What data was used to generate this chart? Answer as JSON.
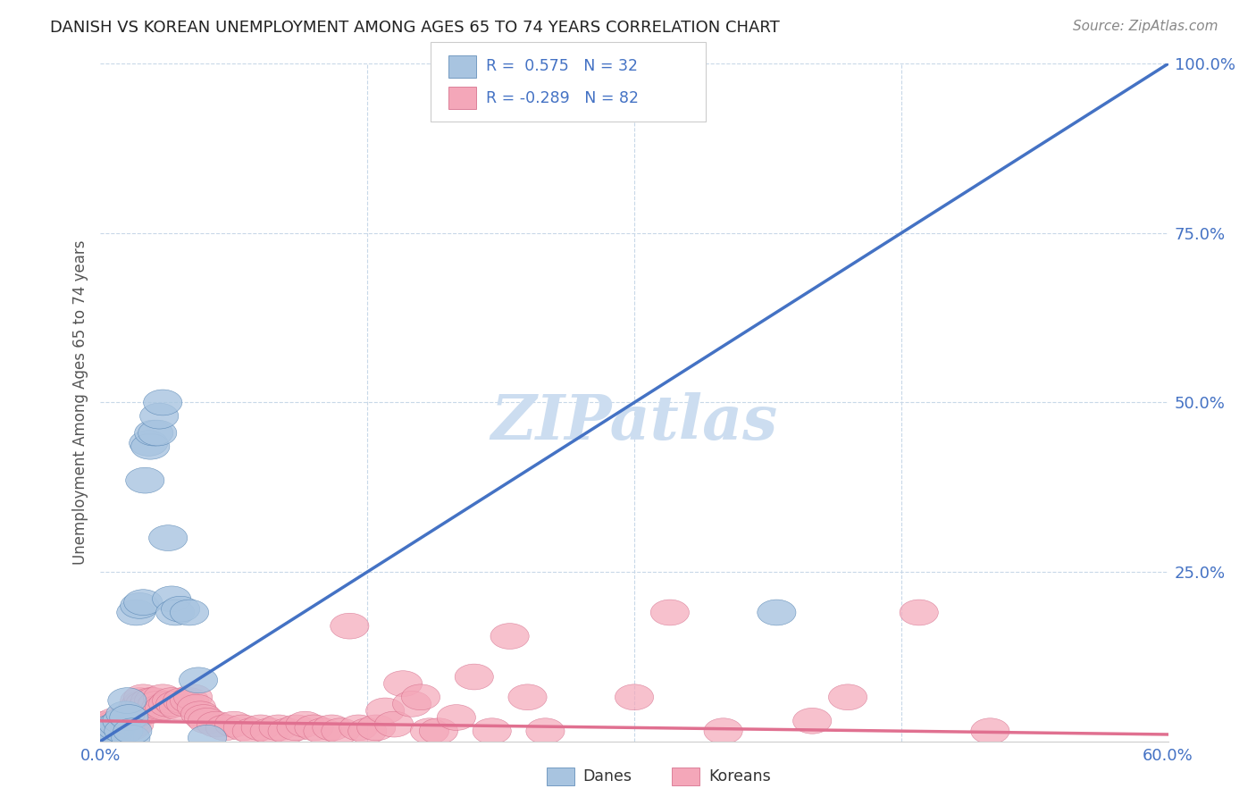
{
  "title": "DANISH VS KOREAN UNEMPLOYMENT AMONG AGES 65 TO 74 YEARS CORRELATION CHART",
  "source": "Source: ZipAtlas.com",
  "ylabel": "Unemployment Among Ages 65 to 74 years",
  "xlim": [
    0.0,
    0.6
  ],
  "ylim": [
    0.0,
    1.0
  ],
  "danes_color": "#a8c4e0",
  "danes_edge_color": "#5080b0",
  "danes_line_color": "#4472c4",
  "koreans_color": "#f4a7b9",
  "koreans_edge_color": "#d06080",
  "koreans_line_color": "#e07090",
  "ref_line_color": "#b8c8d8",
  "background_color": "#ffffff",
  "grid_color": "#c8d8e8",
  "title_color": "#222222",
  "axis_label_color": "#4472c4",
  "watermark_color": "#ccddf0",
  "danes_line": [
    0.0,
    0.0,
    0.6,
    1.0
  ],
  "koreans_line_start_y": 0.03,
  "koreans_line_end_y": 0.01,
  "danes_points": [
    [
      0.003,
      0.01
    ],
    [
      0.005,
      0.015
    ],
    [
      0.006,
      0.02
    ],
    [
      0.007,
      0.01
    ],
    [
      0.008,
      0.005
    ],
    [
      0.009,
      0.02
    ],
    [
      0.01,
      0.025
    ],
    [
      0.012,
      0.03
    ],
    [
      0.013,
      0.015
    ],
    [
      0.014,
      0.04
    ],
    [
      0.015,
      0.06
    ],
    [
      0.016,
      0.035
    ],
    [
      0.017,
      0.005
    ],
    [
      0.018,
      0.015
    ],
    [
      0.02,
      0.19
    ],
    [
      0.022,
      0.2
    ],
    [
      0.024,
      0.205
    ],
    [
      0.025,
      0.385
    ],
    [
      0.027,
      0.44
    ],
    [
      0.028,
      0.435
    ],
    [
      0.03,
      0.455
    ],
    [
      0.032,
      0.455
    ],
    [
      0.033,
      0.48
    ],
    [
      0.035,
      0.5
    ],
    [
      0.038,
      0.3
    ],
    [
      0.04,
      0.21
    ],
    [
      0.042,
      0.19
    ],
    [
      0.045,
      0.195
    ],
    [
      0.05,
      0.19
    ],
    [
      0.055,
      0.09
    ],
    [
      0.06,
      0.005
    ],
    [
      0.38,
      0.19
    ]
  ],
  "koreans_points": [
    [
      0.002,
      0.025
    ],
    [
      0.004,
      0.02
    ],
    [
      0.005,
      0.015
    ],
    [
      0.006,
      0.02
    ],
    [
      0.007,
      0.025
    ],
    [
      0.008,
      0.03
    ],
    [
      0.009,
      0.015
    ],
    [
      0.01,
      0.02
    ],
    [
      0.011,
      0.025
    ],
    [
      0.012,
      0.03
    ],
    [
      0.013,
      0.02
    ],
    [
      0.014,
      0.025
    ],
    [
      0.015,
      0.03
    ],
    [
      0.016,
      0.025
    ],
    [
      0.017,
      0.02
    ],
    [
      0.018,
      0.03
    ],
    [
      0.019,
      0.025
    ],
    [
      0.02,
      0.04
    ],
    [
      0.021,
      0.05
    ],
    [
      0.022,
      0.06
    ],
    [
      0.023,
      0.055
    ],
    [
      0.024,
      0.065
    ],
    [
      0.025,
      0.055
    ],
    [
      0.026,
      0.05
    ],
    [
      0.027,
      0.045
    ],
    [
      0.028,
      0.06
    ],
    [
      0.03,
      0.06
    ],
    [
      0.032,
      0.055
    ],
    [
      0.034,
      0.05
    ],
    [
      0.035,
      0.065
    ],
    [
      0.036,
      0.05
    ],
    [
      0.038,
      0.055
    ],
    [
      0.04,
      0.06
    ],
    [
      0.042,
      0.055
    ],
    [
      0.044,
      0.05
    ],
    [
      0.046,
      0.06
    ],
    [
      0.048,
      0.055
    ],
    [
      0.05,
      0.06
    ],
    [
      0.052,
      0.065
    ],
    [
      0.054,
      0.05
    ],
    [
      0.056,
      0.04
    ],
    [
      0.058,
      0.035
    ],
    [
      0.06,
      0.03
    ],
    [
      0.065,
      0.025
    ],
    [
      0.07,
      0.02
    ],
    [
      0.075,
      0.025
    ],
    [
      0.08,
      0.02
    ],
    [
      0.085,
      0.015
    ],
    [
      0.09,
      0.02
    ],
    [
      0.095,
      0.015
    ],
    [
      0.1,
      0.02
    ],
    [
      0.105,
      0.015
    ],
    [
      0.11,
      0.02
    ],
    [
      0.115,
      0.025
    ],
    [
      0.12,
      0.02
    ],
    [
      0.125,
      0.015
    ],
    [
      0.13,
      0.02
    ],
    [
      0.135,
      0.015
    ],
    [
      0.14,
      0.17
    ],
    [
      0.145,
      0.02
    ],
    [
      0.15,
      0.015
    ],
    [
      0.155,
      0.02
    ],
    [
      0.16,
      0.045
    ],
    [
      0.165,
      0.025
    ],
    [
      0.17,
      0.085
    ],
    [
      0.175,
      0.055
    ],
    [
      0.18,
      0.065
    ],
    [
      0.185,
      0.015
    ],
    [
      0.19,
      0.015
    ],
    [
      0.2,
      0.035
    ],
    [
      0.21,
      0.095
    ],
    [
      0.22,
      0.015
    ],
    [
      0.23,
      0.155
    ],
    [
      0.24,
      0.065
    ],
    [
      0.25,
      0.015
    ],
    [
      0.3,
      0.065
    ],
    [
      0.32,
      0.19
    ],
    [
      0.35,
      0.015
    ],
    [
      0.4,
      0.03
    ],
    [
      0.42,
      0.065
    ],
    [
      0.46,
      0.19
    ],
    [
      0.5,
      0.015
    ]
  ]
}
